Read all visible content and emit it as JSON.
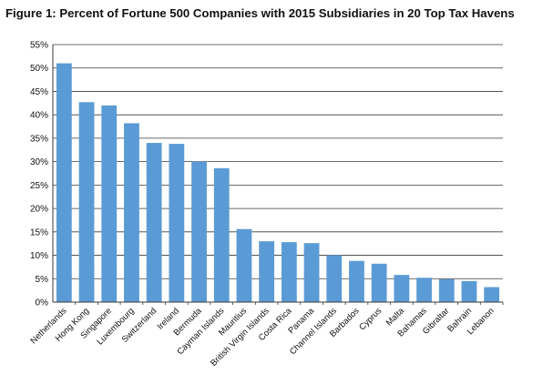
{
  "chart_data": {
    "type": "bar",
    "title": "Figure 1: Percent of Fortune 500 Companies with 2015 Subsidiaries in 20 Top Tax Havens",
    "xlabel": "",
    "ylabel": "",
    "ylim": [
      0,
      55
    ],
    "yticks": [
      "0%",
      "5%",
      "10%",
      "15%",
      "20%",
      "25%",
      "30%",
      "35%",
      "40%",
      "45%",
      "50%",
      "55%"
    ],
    "grid": true,
    "legend": "none",
    "bar_color": "#5b9bd5",
    "categories": [
      "Netherlands",
      "Hong Kong",
      "Singapore",
      "Luxembourg",
      "Switzerland",
      "Ireland",
      "Bermuda",
      "Cayman Islands",
      "Mauritius",
      "British Virgin Islands",
      "Costa Rica",
      "Panama",
      "Channel Islands",
      "Barbados",
      "Cyprus",
      "Malta",
      "Bahamas",
      "Gibraltar",
      "Bahrain",
      "Lebanon"
    ],
    "values": [
      51.0,
      42.7,
      42.0,
      38.2,
      34.0,
      33.8,
      30.0,
      28.6,
      15.6,
      13.0,
      12.8,
      12.6,
      10.0,
      8.8,
      8.2,
      5.8,
      5.2,
      4.9,
      4.5,
      3.2
    ]
  }
}
